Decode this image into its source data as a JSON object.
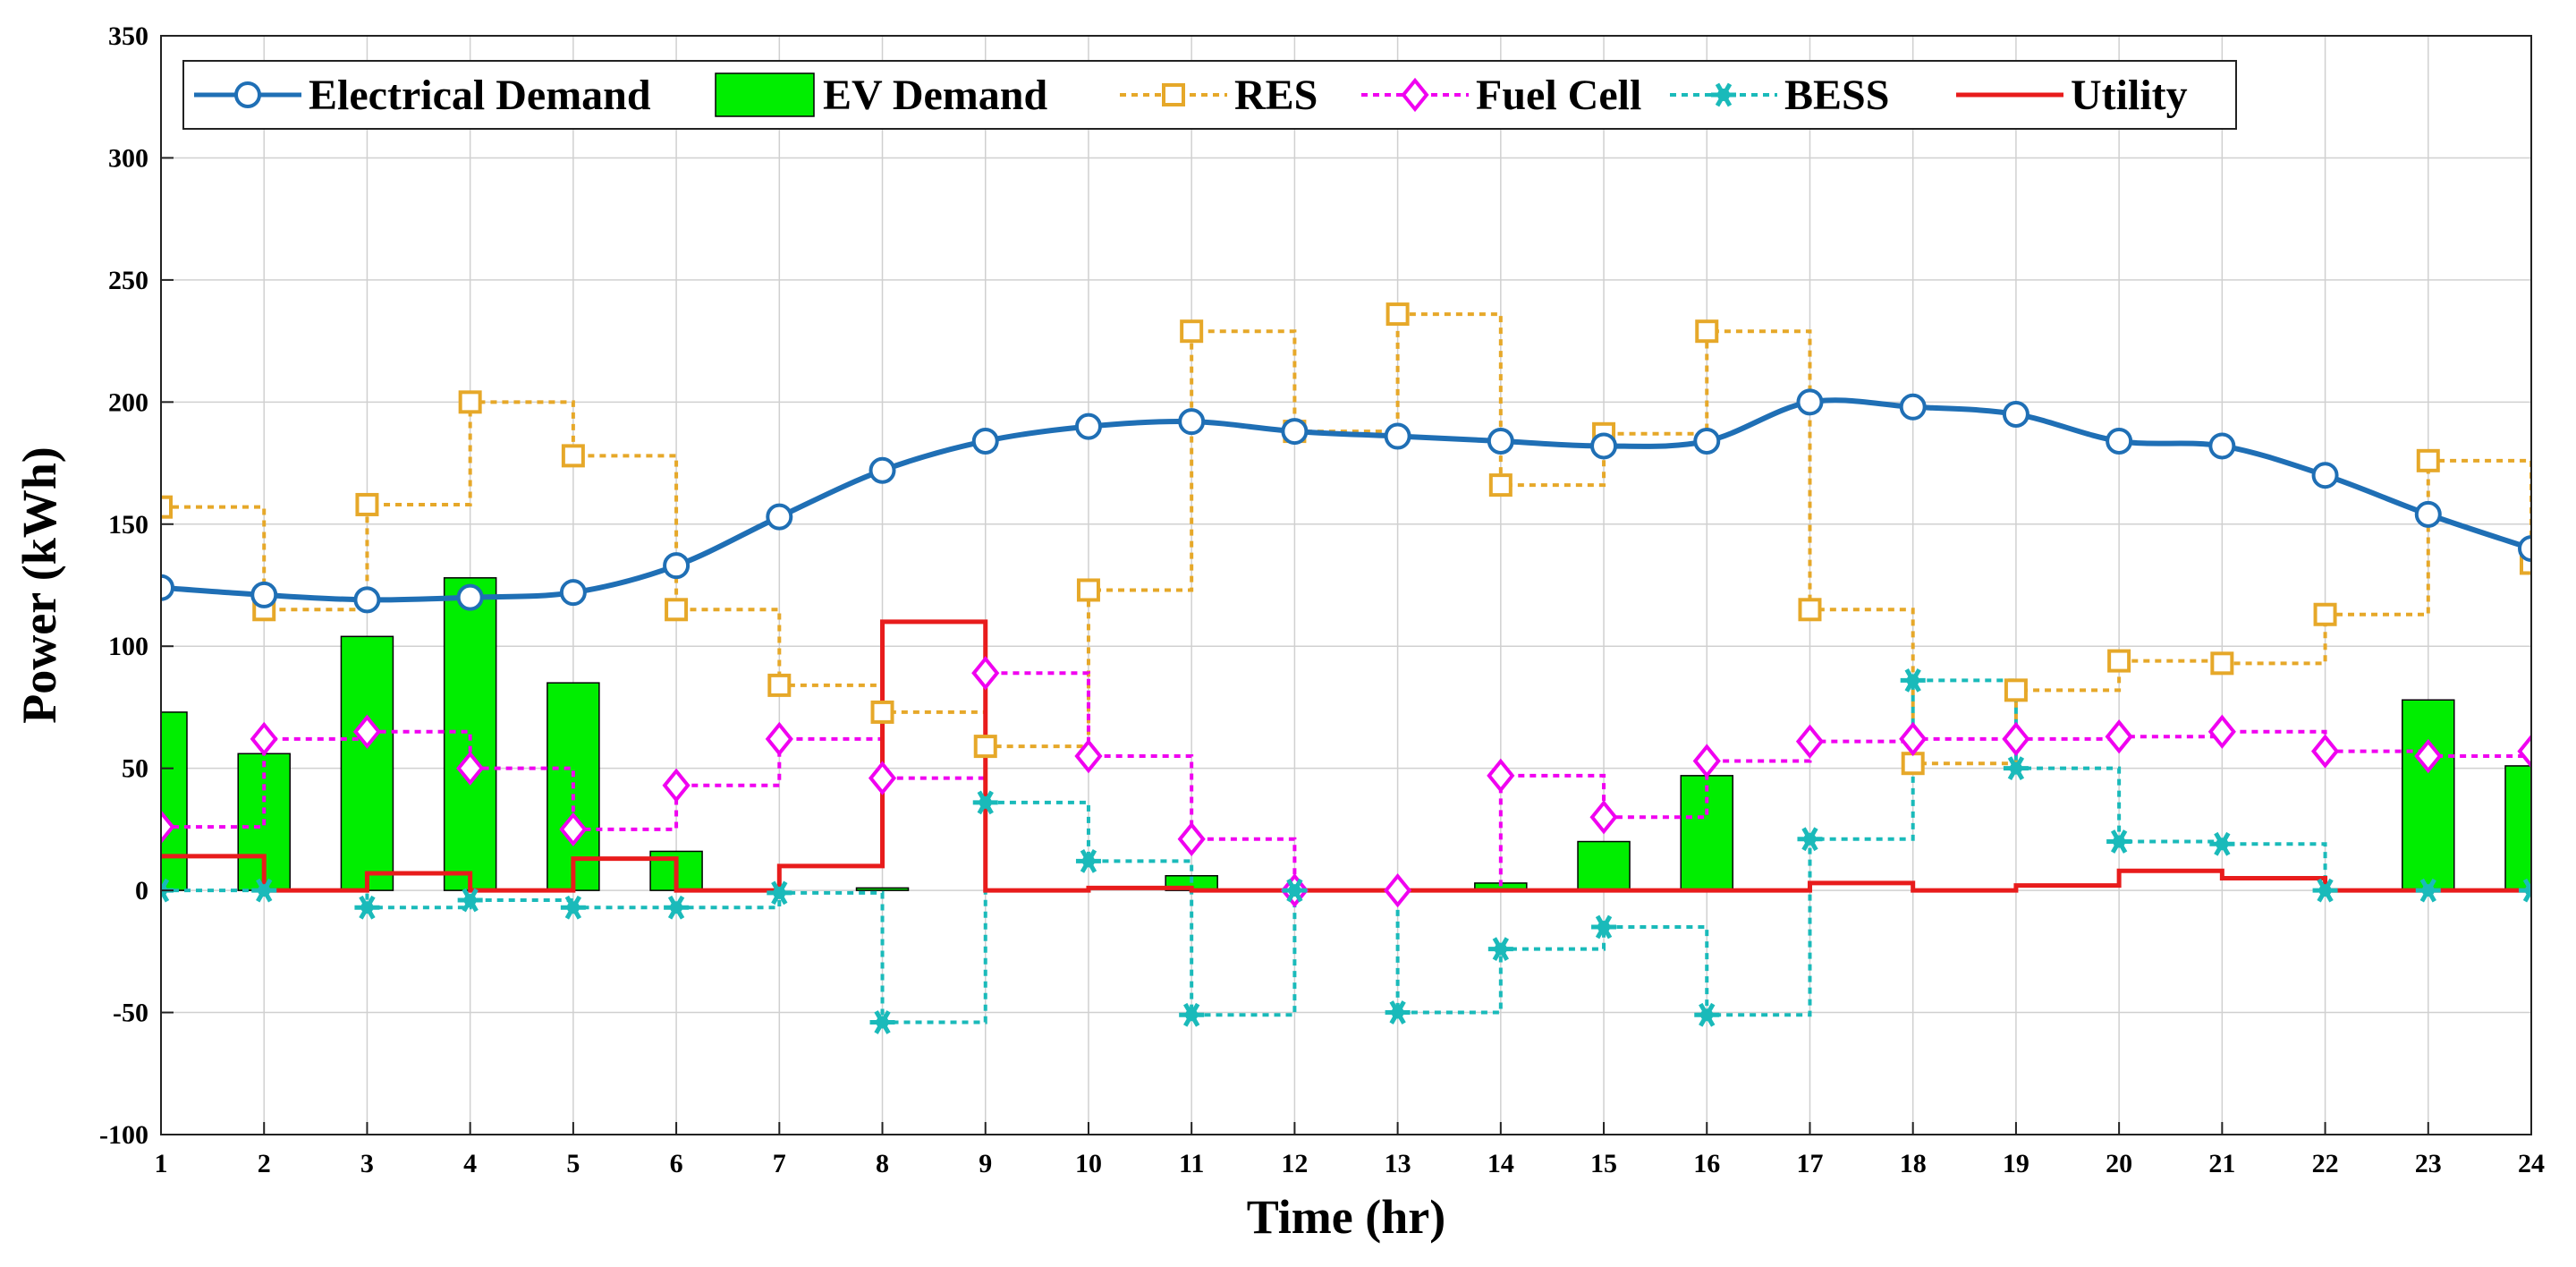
{
  "chart_data": {
    "type": "line",
    "xlabel": "Time (hr)",
    "ylabel": "Power (kWh)",
    "xlim": [
      1,
      24
    ],
    "ylim": [
      -100,
      350
    ],
    "x_ticks": [
      "1",
      "2",
      "3",
      "4",
      "5",
      "6",
      "7",
      "8",
      "9",
      "10",
      "11",
      "12",
      "13",
      "14",
      "15",
      "16",
      "17",
      "18",
      "19",
      "20",
      "21",
      "22",
      "23",
      "24"
    ],
    "y_ticks": [
      "-100",
      "-50",
      "0",
      "50",
      "100",
      "150",
      "200",
      "250",
      "300",
      "350"
    ],
    "grid": true,
    "legend_position": "top-left",
    "x": [
      1,
      2,
      3,
      4,
      5,
      6,
      7,
      8,
      9,
      10,
      11,
      12,
      13,
      14,
      15,
      16,
      17,
      18,
      19,
      20,
      21,
      22,
      23,
      24
    ],
    "series": [
      {
        "name": "Electrical Demand",
        "kind": "line",
        "color": "#1f6fb5",
        "marker": "circle",
        "values": [
          124,
          121,
          119,
          120,
          122,
          133,
          153,
          172,
          184,
          190,
          192,
          188,
          186,
          184,
          182,
          184,
          200,
          198,
          195,
          184,
          182,
          170,
          154,
          140
        ]
      },
      {
        "name": "EV Demand",
        "kind": "bar",
        "color": "#00ee00",
        "values": [
          73,
          56,
          104,
          128,
          85,
          16,
          0,
          1,
          0,
          0,
          6,
          0,
          0,
          3,
          20,
          47,
          0,
          0,
          0,
          0,
          0,
          0,
          78,
          51
        ]
      },
      {
        "name": "RES",
        "kind": "step",
        "color": "#e6a829",
        "marker": "square",
        "values": [
          157,
          115,
          158,
          200,
          178,
          115,
          84,
          73,
          59,
          123,
          229,
          188,
          236,
          166,
          187,
          229,
          115,
          52,
          82,
          94,
          93,
          113,
          176,
          134
        ]
      },
      {
        "name": "Fuel Cell",
        "kind": "step",
        "color": "#f000f0",
        "marker": "diamond",
        "values": [
          26,
          62,
          65,
          50,
          25,
          43,
          62,
          46,
          89,
          55,
          21,
          0,
          0,
          47,
          30,
          53,
          61,
          62,
          62,
          63,
          65,
          57,
          55,
          57
        ]
      },
      {
        "name": "BESS",
        "kind": "step",
        "color": "#1ababa",
        "marker": "star",
        "values": [
          0,
          0,
          -7,
          -4,
          -7,
          -7,
          -1,
          -54,
          36,
          12,
          -51,
          0,
          -50,
          -24,
          -15,
          -51,
          21,
          86,
          50,
          20,
          19,
          0,
          0,
          0
        ]
      },
      {
        "name": "Utility",
        "kind": "step",
        "color": "#e81c1c",
        "marker": "none",
        "values": [
          14,
          0,
          7,
          0,
          13,
          0,
          10,
          110,
          0,
          1,
          0,
          0,
          0,
          0,
          0,
          0,
          3,
          0,
          2,
          8,
          5,
          0,
          0,
          0
        ]
      }
    ]
  }
}
